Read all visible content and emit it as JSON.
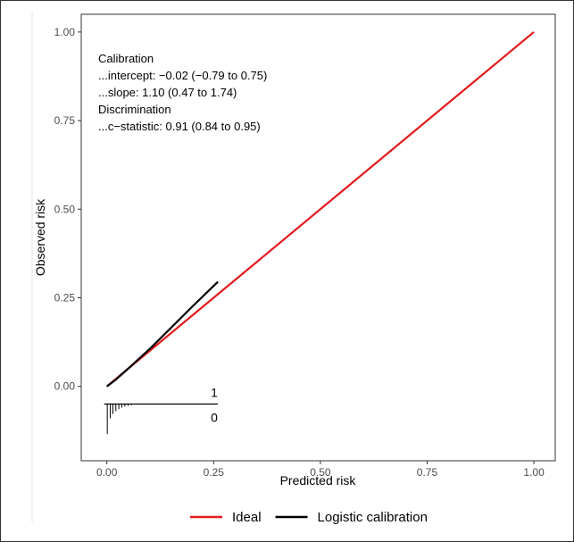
{
  "chart_data": {
    "type": "line",
    "xlabel": "Predicted risk",
    "ylabel": "Observed risk",
    "xlim": [
      -0.06,
      1.05
    ],
    "ylim": [
      -0.21,
      1.05
    ],
    "x_ticks": [
      0,
      0.25,
      0.5,
      0.75,
      1
    ],
    "x_tick_labels": [
      "0.00",
      "0.25",
      "0.50",
      "0.75",
      "1.00"
    ],
    "y_ticks": [
      0,
      0.25,
      0.5,
      0.75,
      1
    ],
    "y_tick_labels": [
      "0.00",
      "0.25",
      "0.50",
      "0.75",
      "1.00"
    ],
    "grid": false,
    "legend_position": "bottom",
    "series": [
      {
        "name": "Ideal",
        "color": "#e41a1c",
        "x": [
          0,
          1
        ],
        "y": [
          0,
          1
        ]
      },
      {
        "name": "Logistic calibration",
        "color": "#000000",
        "x": [
          0,
          0.02,
          0.05,
          0.1,
          0.15,
          0.2,
          0.26
        ],
        "y": [
          0,
          0.018,
          0.05,
          0.105,
          0.165,
          0.225,
          0.295
        ]
      }
    ],
    "annotations": [
      "Calibration",
      "...intercept: −0.02 (−0.79 to 0.75)",
      "...slope: 1.10 (0.47 to 1.74)",
      "Discrimination",
      "...c−statistic: 0.91 (0.84 to 0.95)"
    ],
    "rug": {
      "upper_label": "1",
      "lower_label": "0",
      "baseline_y": -0.05,
      "x_end": 0.26,
      "events": [],
      "non_events": [
        {
          "x": 0.001,
          "h": 0.085
        },
        {
          "x": 0.008,
          "h": 0.04
        },
        {
          "x": 0.014,
          "h": 0.028
        },
        {
          "x": 0.021,
          "h": 0.02
        },
        {
          "x": 0.028,
          "h": 0.014
        },
        {
          "x": 0.035,
          "h": 0.01
        },
        {
          "x": 0.042,
          "h": 0.007
        },
        {
          "x": 0.05,
          "h": 0.005
        },
        {
          "x": 0.058,
          "h": 0.003
        }
      ]
    }
  }
}
